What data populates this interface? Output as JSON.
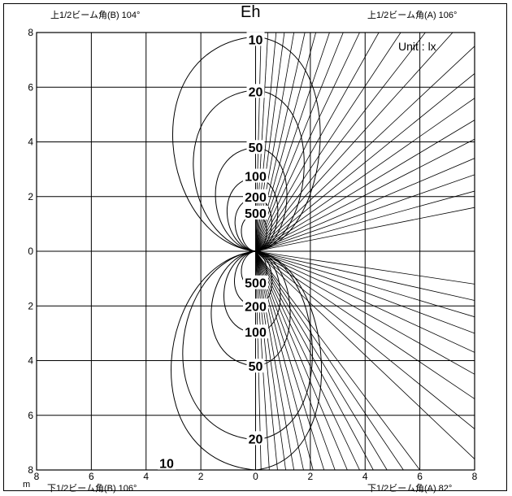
{
  "chart_data": {
    "type": "isolux-contour",
    "title": "Eh",
    "unit_label": "Unit : lx",
    "corner_labels": {
      "top_left": "上1/2ビーム角(B)  104°",
      "top_right": "上1/2ビーム角(A)  106°",
      "bottom_left": "下1/2ビーム角(B)  106°",
      "bottom_right": "下1/2ビーム角(A)  82°"
    },
    "x_unit": "m",
    "x_tick_labels": [
      "8",
      "6",
      "4",
      "2",
      "0",
      "2",
      "4",
      "6",
      "8"
    ],
    "y_tick_labels": [
      "8",
      "6",
      "4",
      "2",
      "0",
      "2",
      "4",
      "6",
      "8"
    ],
    "x_range": [
      -8,
      8
    ],
    "y_range": [
      -8,
      8
    ],
    "grid": true,
    "contours": [
      {
        "level": "10",
        "upper_top": 7.85,
        "lower_bottom": 8.0
      },
      {
        "level": "20",
        "upper_top": 5.9,
        "lower_bottom": 6.9
      },
      {
        "level": "50",
        "upper_top": 3.8,
        "lower_bottom": 4.2
      },
      {
        "level": "100",
        "upper_top": 2.7,
        "lower_bottom": 3.0
      },
      {
        "level": "200",
        "upper_top": 1.95,
        "lower_bottom": 2.0
      },
      {
        "level": "500",
        "upper_top": 1.35,
        "lower_bottom": 1.35
      }
    ],
    "contour_label_positions": [
      {
        "text": "10",
        "x": 0.0,
        "y": 7.75
      },
      {
        "text": "20",
        "x": 0.0,
        "y": 5.85
      },
      {
        "text": "50",
        "x": 0.0,
        "y": 3.8
      },
      {
        "text": "100",
        "x": 0.0,
        "y": 2.75
      },
      {
        "text": "200",
        "x": 0.0,
        "y": 2.0
      },
      {
        "text": "500",
        "x": 0.0,
        "y": 1.4
      },
      {
        "text": "500",
        "x": 0.0,
        "y": -1.15
      },
      {
        "text": "200",
        "x": 0.0,
        "y": -2.0
      },
      {
        "text": "100",
        "x": 0.0,
        "y": -2.95
      },
      {
        "text": "50",
        "x": 0.0,
        "y": -4.2
      },
      {
        "text": "20",
        "x": 0.0,
        "y": -6.85
      },
      {
        "text": "10",
        "x": -3.25,
        "y": -7.75
      }
    ],
    "upper_rays_end_x_at_top": [
      0.2,
      0.45,
      0.75,
      1.05,
      1.4,
      1.8,
      2.2,
      2.7,
      3.2,
      3.8,
      4.5,
      5.3,
      6.2,
      7.2
    ],
    "upper_rays_end_y_at_right": [
      7.5,
      6.5,
      5.6,
      4.8,
      4.1,
      3.4,
      2.8,
      2.2,
      1.6
    ],
    "lower_rays_end_x_at_bottom": [
      0.2,
      0.5,
      0.8,
      1.1,
      1.4,
      1.75,
      2.1,
      2.5,
      2.9,
      3.35,
      3.8,
      4.3,
      4.8,
      5.4,
      6.0
    ],
    "lower_rays_end_y_at_right": [
      -1.2,
      -1.8,
      -2.4,
      -3.0,
      -3.7,
      -4.5,
      -5.4,
      -6.5,
      -7.6
    ]
  }
}
